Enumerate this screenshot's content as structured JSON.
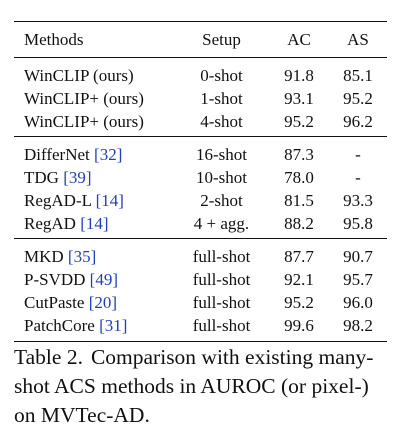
{
  "table": {
    "headers": {
      "method": "Methods",
      "setup": "Setup",
      "ac": "AC",
      "as": "AS"
    },
    "groups": [
      [
        {
          "name": "WinCLIP (ours)",
          "cite": "",
          "setup": "0-shot",
          "ac": "91.8",
          "as": "85.1"
        },
        {
          "name": "WinCLIP+ (ours)",
          "cite": "",
          "setup": "1-shot",
          "ac": "93.1",
          "as": "95.2"
        },
        {
          "name": "WinCLIP+ (ours)",
          "cite": "",
          "setup": "4-shot",
          "ac": "95.2",
          "as": "96.2"
        }
      ],
      [
        {
          "name": "DifferNet",
          "cite": "[32]",
          "setup": "16-shot",
          "ac": "87.3",
          "as": "-"
        },
        {
          "name": "TDG",
          "cite": "[39]",
          "setup": "10-shot",
          "ac": "78.0",
          "as": "-"
        },
        {
          "name": "RegAD-L",
          "cite": "[14]",
          "setup": "2-shot",
          "ac": "81.5",
          "as": "93.3"
        },
        {
          "name": "RegAD",
          "cite": "[14]",
          "setup": "4 + agg.",
          "ac": "88.2",
          "as": "95.8"
        }
      ],
      [
        {
          "name": "MKD",
          "cite": "[35]",
          "setup": "full-shot",
          "ac": "87.7",
          "as": "90.7"
        },
        {
          "name": "P-SVDD",
          "cite": "[49]",
          "setup": "full-shot",
          "ac": "92.1",
          "as": "95.7"
        },
        {
          "name": "CutPaste",
          "cite": "[20]",
          "setup": "full-shot",
          "ac": "95.2",
          "as": "96.0"
        },
        {
          "name": "PatchCore",
          "cite": "[31]",
          "setup": "full-shot",
          "ac": "99.6",
          "as": "98.2"
        }
      ]
    ]
  },
  "caption": {
    "label": "Table 2.",
    "text": "Comparison with existing many-shot ACS methods in AUROC (or pixel-) on MVTec-AD."
  }
}
